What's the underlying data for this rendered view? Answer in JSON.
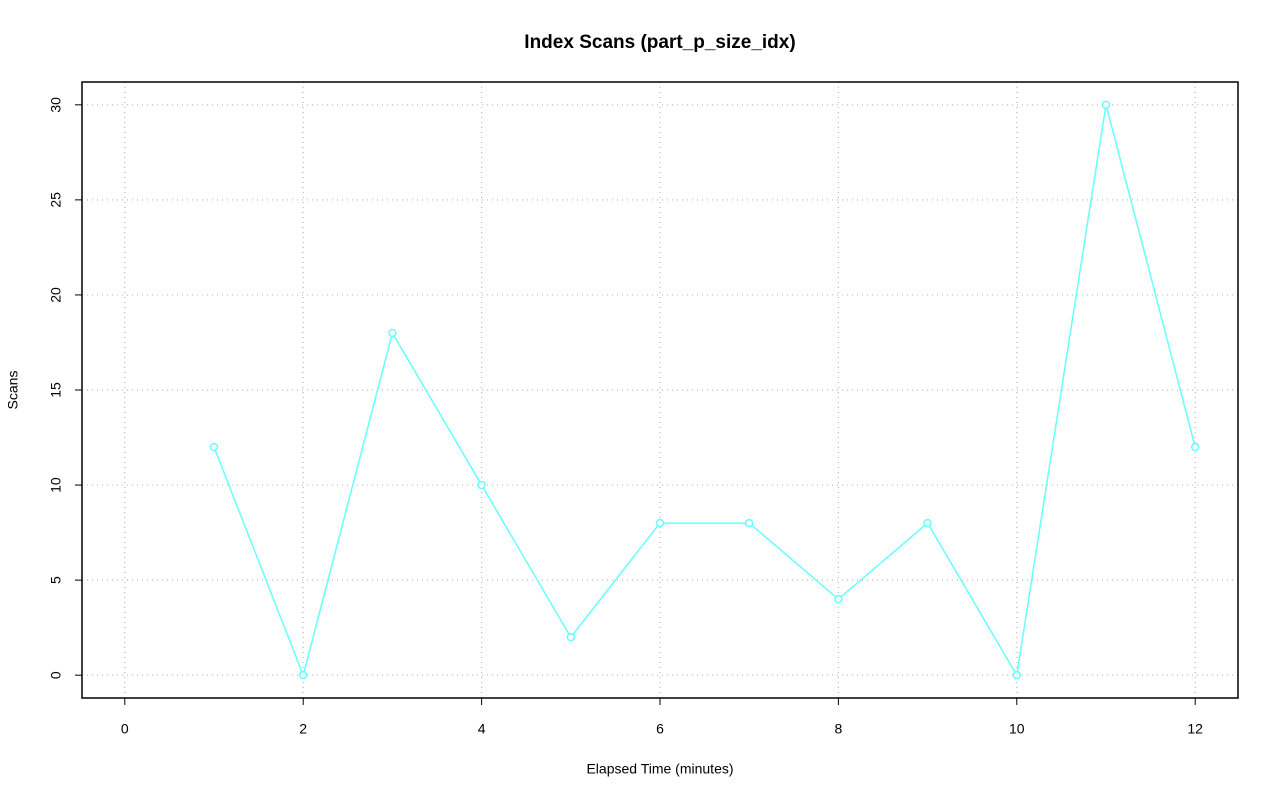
{
  "chart_data": {
    "type": "line",
    "title": "Index Scans (part_p_size_idx)",
    "x_label": "Elapsed Time (minutes)",
    "y_label": "Scans",
    "x": [
      1,
      2,
      3,
      4,
      5,
      6,
      7,
      8,
      9,
      10,
      11,
      12
    ],
    "series": [
      {
        "name": "Scans",
        "color": "#66ffff",
        "values": [
          12,
          0,
          18,
          10,
          2,
          8,
          8,
          4,
          8,
          0,
          30,
          12
        ]
      }
    ],
    "xlim": [
      -0.48,
      12.48
    ],
    "ylim": [
      -1.2,
      31.2
    ],
    "xticks": [
      0,
      2,
      4,
      6,
      8,
      10,
      12
    ],
    "yticks": [
      0,
      5,
      10,
      15,
      20,
      25,
      30
    ],
    "grid": true
  }
}
